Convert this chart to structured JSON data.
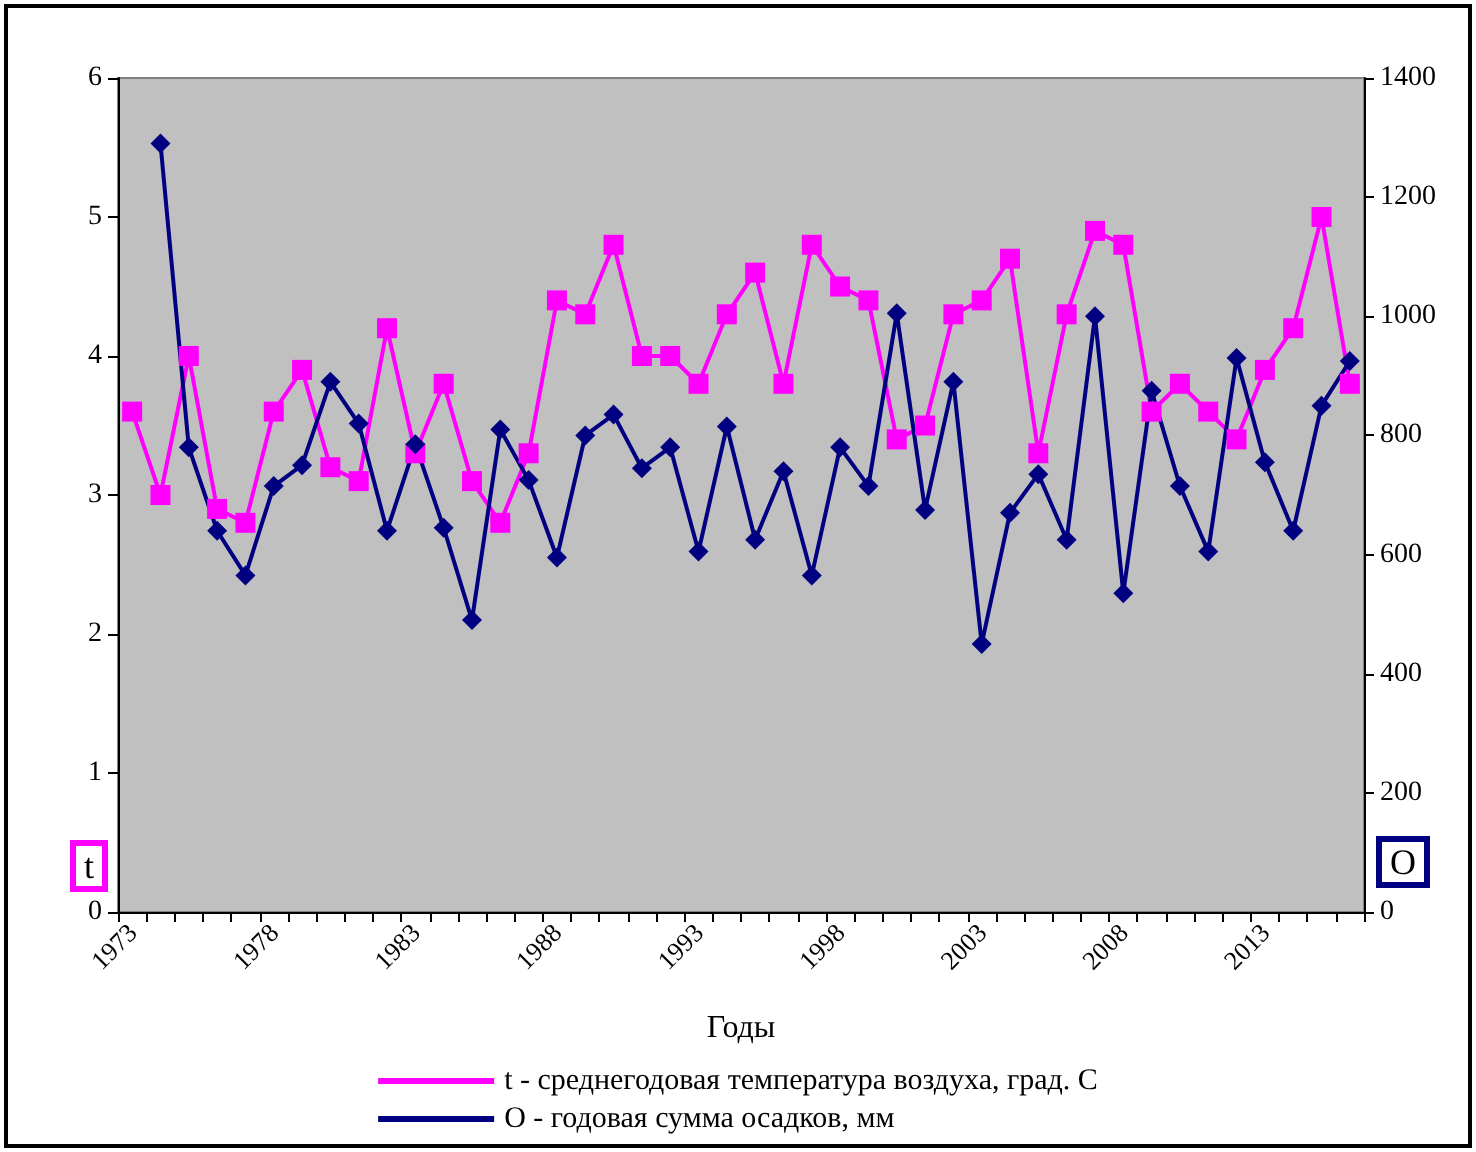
{
  "chart_data": {
    "type": "line",
    "xlabel": "Годы",
    "ylabel": "t",
    "y2label": "O",
    "categories": [
      "1973",
      null,
      null,
      null,
      null,
      "1978",
      null,
      null,
      null,
      null,
      "1983",
      null,
      null,
      null,
      null,
      "1988",
      null,
      null,
      null,
      null,
      "1993",
      null,
      null,
      null,
      null,
      "1998",
      null,
      null,
      null,
      null,
      "2003",
      null,
      null,
      null,
      null,
      "2008",
      null,
      null,
      null,
      null,
      "2013",
      null,
      null,
      null
    ],
    "series": [
      {
        "name": "t - среднегодовая температура воздуха, град. С",
        "color": "#ff00ff",
        "marker": "square",
        "values": [
          3.6,
          3.0,
          4.0,
          2.9,
          2.8,
          3.6,
          3.9,
          3.2,
          3.1,
          4.2,
          3.3,
          3.8,
          3.1,
          2.8,
          3.3,
          4.4,
          4.3,
          4.8,
          4.0,
          4.0,
          3.8,
          4.3,
          4.6,
          3.8,
          4.8,
          4.5,
          4.4,
          3.4,
          3.5,
          4.3,
          4.4,
          4.7,
          3.3,
          4.3,
          4.9,
          4.8,
          3.6,
          3.8,
          3.6,
          3.4,
          3.9,
          4.2,
          5.0,
          3.8
        ]
      },
      {
        "name": "O - годовая сумма осадков, мм",
        "color": "#000080",
        "marker": "diamond",
        "axis": "y2",
        "values": [
          null,
          1290,
          780,
          640,
          565,
          715,
          750,
          890,
          820,
          640,
          785,
          645,
          490,
          810,
          725,
          595,
          800,
          835,
          745,
          780,
          605,
          815,
          625,
          740,
          565,
          780,
          715,
          1005,
          675,
          890,
          450,
          670,
          735,
          625,
          1000,
          535,
          875,
          715,
          605,
          930,
          755,
          640,
          850,
          925
        ]
      }
    ],
    "ylim": [
      0,
      6
    ],
    "yticks": [
      0,
      1,
      2,
      3,
      4,
      5,
      6
    ],
    "y2lim": [
      0,
      1400
    ],
    "y2ticks": [
      0,
      200,
      400,
      600,
      800,
      1000,
      1200,
      1400
    ],
    "grid": false,
    "legend": "bottom",
    "line_style": "solid"
  }
}
